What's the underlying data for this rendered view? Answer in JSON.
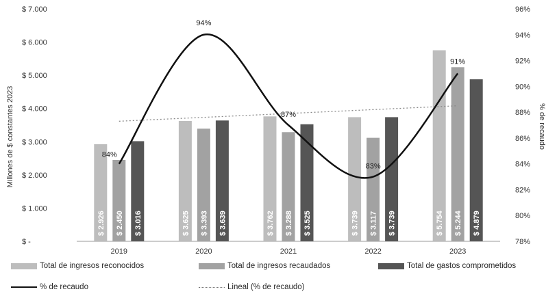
{
  "chart_data": {
    "type": "bar",
    "categories": [
      "2019",
      "2020",
      "2021",
      "2022",
      "2023"
    ],
    "series": [
      {
        "name": "Total de ingresos reconocidos",
        "kind": "bar",
        "color": "#bdbdbd",
        "values": [
          2926,
          3625,
          3762,
          3739,
          5754
        ],
        "labels": [
          "$ 2.926",
          "$ 3.625",
          "$ 3.762",
          "$ 3.739",
          "$ 5.754"
        ]
      },
      {
        "name": "Total de ingresos recaudados",
        "kind": "bar",
        "color": "#a2a2a2",
        "values": [
          2450,
          3393,
          3288,
          3117,
          5244
        ],
        "labels": [
          "$ 2.450",
          "$ 3.393",
          "$ 3.288",
          "$ 3.117",
          "$ 5.244"
        ]
      },
      {
        "name": "Total de gastos comprometidos",
        "kind": "bar",
        "color": "#555555",
        "values": [
          3016,
          3639,
          3525,
          3739,
          4879
        ],
        "labels": [
          "$ 3.016",
          "$ 3.639",
          "$ 3.525",
          "$ 3.739",
          "$ 4.879"
        ]
      },
      {
        "name": "% de recaudo",
        "kind": "line",
        "axis": "right",
        "color": "#111111",
        "values": [
          84,
          94,
          87,
          83,
          91
        ],
        "labels": [
          "84%",
          "94%",
          "87%",
          "83%",
          "91%"
        ]
      },
      {
        "name": "Lineal (% de recaudo)",
        "kind": "trendline",
        "axis": "right",
        "color": "#888888",
        "values": [
          87.3,
          87.6,
          87.9,
          88.2,
          88.5
        ]
      }
    ],
    "ylabel": "Millones de $ constantes 2023",
    "ylabel_right": "% de recaudo",
    "ylim": [
      0,
      7000
    ],
    "ylim_right": [
      78,
      96
    ],
    "yticks": [
      "$ -",
      "$ 1.000",
      "$ 2.000",
      "$ 3.000",
      "$ 4.000",
      "$ 5.000",
      "$ 6.000",
      "$ 7.000"
    ],
    "yticks_right": [
      "78%",
      "80%",
      "82%",
      "84%",
      "86%",
      "88%",
      "90%",
      "92%",
      "94%",
      "96%"
    ],
    "grid": false,
    "legend": "bottom"
  }
}
